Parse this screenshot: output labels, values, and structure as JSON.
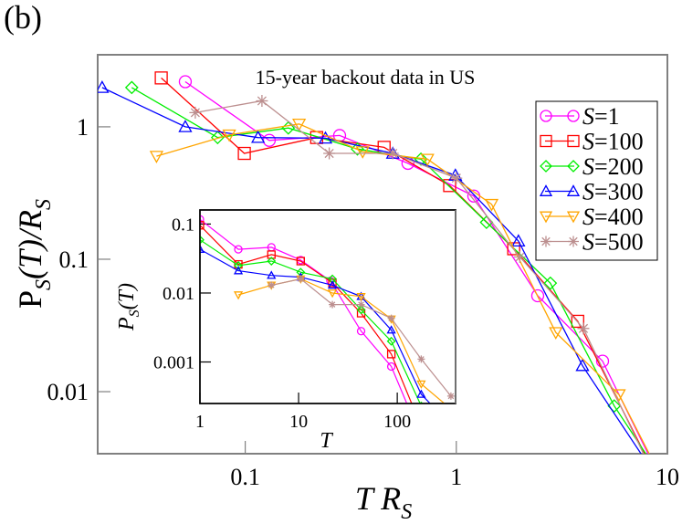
{
  "panel_label": "(b)",
  "chart_data": [
    {
      "type": "line",
      "role": "main",
      "title": "15-year backout data in US",
      "xlabel": "T R_S",
      "ylabel": "P_S(T)/R_S",
      "xscale": "log",
      "yscale": "log",
      "xlim": [
        0.02,
        10
      ],
      "ylim": [
        0.0034,
        3.5
      ],
      "xticks": [
        {
          "v": 0.1,
          "label": "0.1"
        },
        {
          "v": 1,
          "label": "1"
        },
        {
          "v": 10,
          "label": "10"
        }
      ],
      "yticks": [
        {
          "v": 0.01,
          "label": "0.01"
        },
        {
          "v": 0.1,
          "label": "0.1"
        },
        {
          "v": 1,
          "label": "1"
        }
      ],
      "grid": false,
      "legend_position": "upper right",
      "series": [
        {
          "name": "S=1",
          "color": "#ff00ff",
          "marker": "circle",
          "x": [
            0.052,
            0.13,
            0.28,
            0.59,
            1.21,
            2.43,
            4.93,
            8.1
          ],
          "y": [
            2.19,
            0.79,
            0.86,
            0.53,
            0.3,
            0.053,
            0.017,
            0.0034
          ],
          "marker_count": 7
        },
        {
          "name": "S=100",
          "color": "#ff0000",
          "marker": "square",
          "x": [
            0.04,
            0.099,
            0.218,
            0.455,
            0.93,
            1.87,
            3.76,
            7.8
          ],
          "y": [
            2.34,
            0.63,
            0.83,
            0.7,
            0.36,
            0.12,
            0.034,
            0.0034
          ],
          "marker_count": 7
        },
        {
          "name": "S=200",
          "color": "#00ee00",
          "marker": "diamond",
          "x": [
            0.029,
            0.074,
            0.16,
            0.34,
            0.68,
            1.39,
            2.79,
            5.6,
            7.9
          ],
          "y": [
            1.98,
            0.83,
            0.98,
            0.68,
            0.57,
            0.19,
            0.066,
            0.0078,
            0.0034
          ],
          "marker_count": 8
        },
        {
          "name": "S=300",
          "color": "#0000ff",
          "marker": "triangle-up",
          "x": [
            0.021,
            0.052,
            0.115,
            0.24,
            0.5,
            0.99,
            1.97,
            3.96,
            7.5
          ],
          "y": [
            1.98,
            1.0,
            0.83,
            0.82,
            0.63,
            0.43,
            0.137,
            0.0157,
            0.0034
          ],
          "marker_count": 8
        },
        {
          "name": "S=400",
          "color": "#ffa500",
          "marker": "triangle-down",
          "x": [
            0.038,
            0.084,
            0.18,
            0.36,
            0.73,
            1.47,
            2.96,
            5.9,
            8.2
          ],
          "y": [
            0.6,
            0.87,
            1.05,
            0.65,
            0.57,
            0.26,
            0.028,
            0.0095,
            0.0034
          ],
          "marker_count": 8
        },
        {
          "name": "S=500",
          "color": "#bc8f8f",
          "marker": "star",
          "x": [
            0.058,
            0.12,
            0.25,
            0.5,
            1.0,
            2.0,
            4.0,
            7.7
          ],
          "y": [
            1.28,
            1.57,
            0.63,
            0.63,
            0.41,
            0.104,
            0.03,
            0.0034
          ],
          "marker_count": 7
        }
      ]
    },
    {
      "type": "line",
      "role": "inset",
      "title": "",
      "xlabel": "T",
      "ylabel": "P_S(T)",
      "xscale": "log",
      "yscale": "log",
      "xlim": [
        1,
        390
      ],
      "ylim": [
        0.00025,
        0.16
      ],
      "xticks": [
        {
          "v": 1,
          "label": "1"
        },
        {
          "v": 10,
          "label": "10"
        },
        {
          "v": 100,
          "label": "100"
        }
      ],
      "yticks": [
        {
          "v": 0.001,
          "label": "0.001"
        },
        {
          "v": 0.01,
          "label": "0.01"
        },
        {
          "v": 0.1,
          "label": "0.1"
        }
      ],
      "grid": false,
      "series": [
        {
          "name": "S=1",
          "color": "#ff00ff",
          "marker": "circle",
          "x": [
            1,
            2.45,
            5.3,
            10.5,
            21,
            43,
            87,
            125
          ],
          "y": [
            0.117,
            0.043,
            0.046,
            0.03,
            0.015,
            0.0028,
            0.00086,
            0.00025
          ],
          "marker_count": 7
        },
        {
          "name": "S=100",
          "color": "#ff0000",
          "marker": "square",
          "x": [
            1,
            2.45,
            5.3,
            10.5,
            22,
            43,
            87,
            140
          ],
          "y": [
            0.096,
            0.026,
            0.036,
            0.029,
            0.014,
            0.0051,
            0.0013,
            0.00025
          ],
          "marker_count": 7
        },
        {
          "name": "S=200",
          "color": "#00ee00",
          "marker": "diamond",
          "x": [
            1,
            2.45,
            5.3,
            10.5,
            22,
            43,
            87,
            175,
            200
          ],
          "y": [
            0.059,
            0.025,
            0.029,
            0.02,
            0.016,
            0.0057,
            0.002,
            0.00023,
            0.00025
          ],
          "marker_count": 8
        },
        {
          "name": "S=300",
          "color": "#0000ff",
          "marker": "triangle-up",
          "x": [
            1,
            2.45,
            5.3,
            10.5,
            22,
            43,
            87,
            175,
            215
          ],
          "y": [
            0.043,
            0.021,
            0.018,
            0.017,
            0.013,
            0.0089,
            0.0029,
            0.00034,
            0.00025
          ],
          "marker_count": 8
        },
        {
          "name": "S=400",
          "color": "#ffa500",
          "marker": "triangle-down",
          "x": [
            2.45,
            5.3,
            10.5,
            22,
            43,
            87,
            175,
            300
          ],
          "y": [
            0.0094,
            0.013,
            0.016,
            0.01,
            0.0089,
            0.0042,
            0.00048,
            0.00025
          ],
          "marker_count": 7
        },
        {
          "name": "S=500",
          "color": "#bc8f8f",
          "marker": "star",
          "x": [
            5.3,
            10.5,
            22,
            43,
            87,
            175,
            350
          ],
          "y": [
            0.013,
            0.016,
            0.0068,
            0.0068,
            0.0043,
            0.0011,
            0.00032
          ],
          "marker_count": 7
        }
      ]
    }
  ],
  "legend": {
    "entries": [
      {
        "label_var": "S",
        "label_val": "=1",
        "color": "#ff00ff",
        "marker": "circle"
      },
      {
        "label_var": "S",
        "label_val": "=100",
        "color": "#ff0000",
        "marker": "square"
      },
      {
        "label_var": "S",
        "label_val": "=200",
        "color": "#00ee00",
        "marker": "diamond"
      },
      {
        "label_var": "S",
        "label_val": "=300",
        "color": "#0000ff",
        "marker": "triangle-up"
      },
      {
        "label_var": "S",
        "label_val": "=400",
        "color": "#ffa500",
        "marker": "triangle-down"
      },
      {
        "label_var": "S",
        "label_val": "=500",
        "color": "#bc8f8f",
        "marker": "star"
      }
    ]
  },
  "axis_labels": {
    "main_x_var": "T R",
    "main_x_sub": "S",
    "main_y_main": "P",
    "main_y_sub": "S",
    "main_y_rest": "(T)/R",
    "main_y_sub2": "S",
    "inset_x": "T",
    "inset_y_main": "P",
    "inset_y_sub": "S",
    "inset_y_rest": "(T)"
  }
}
